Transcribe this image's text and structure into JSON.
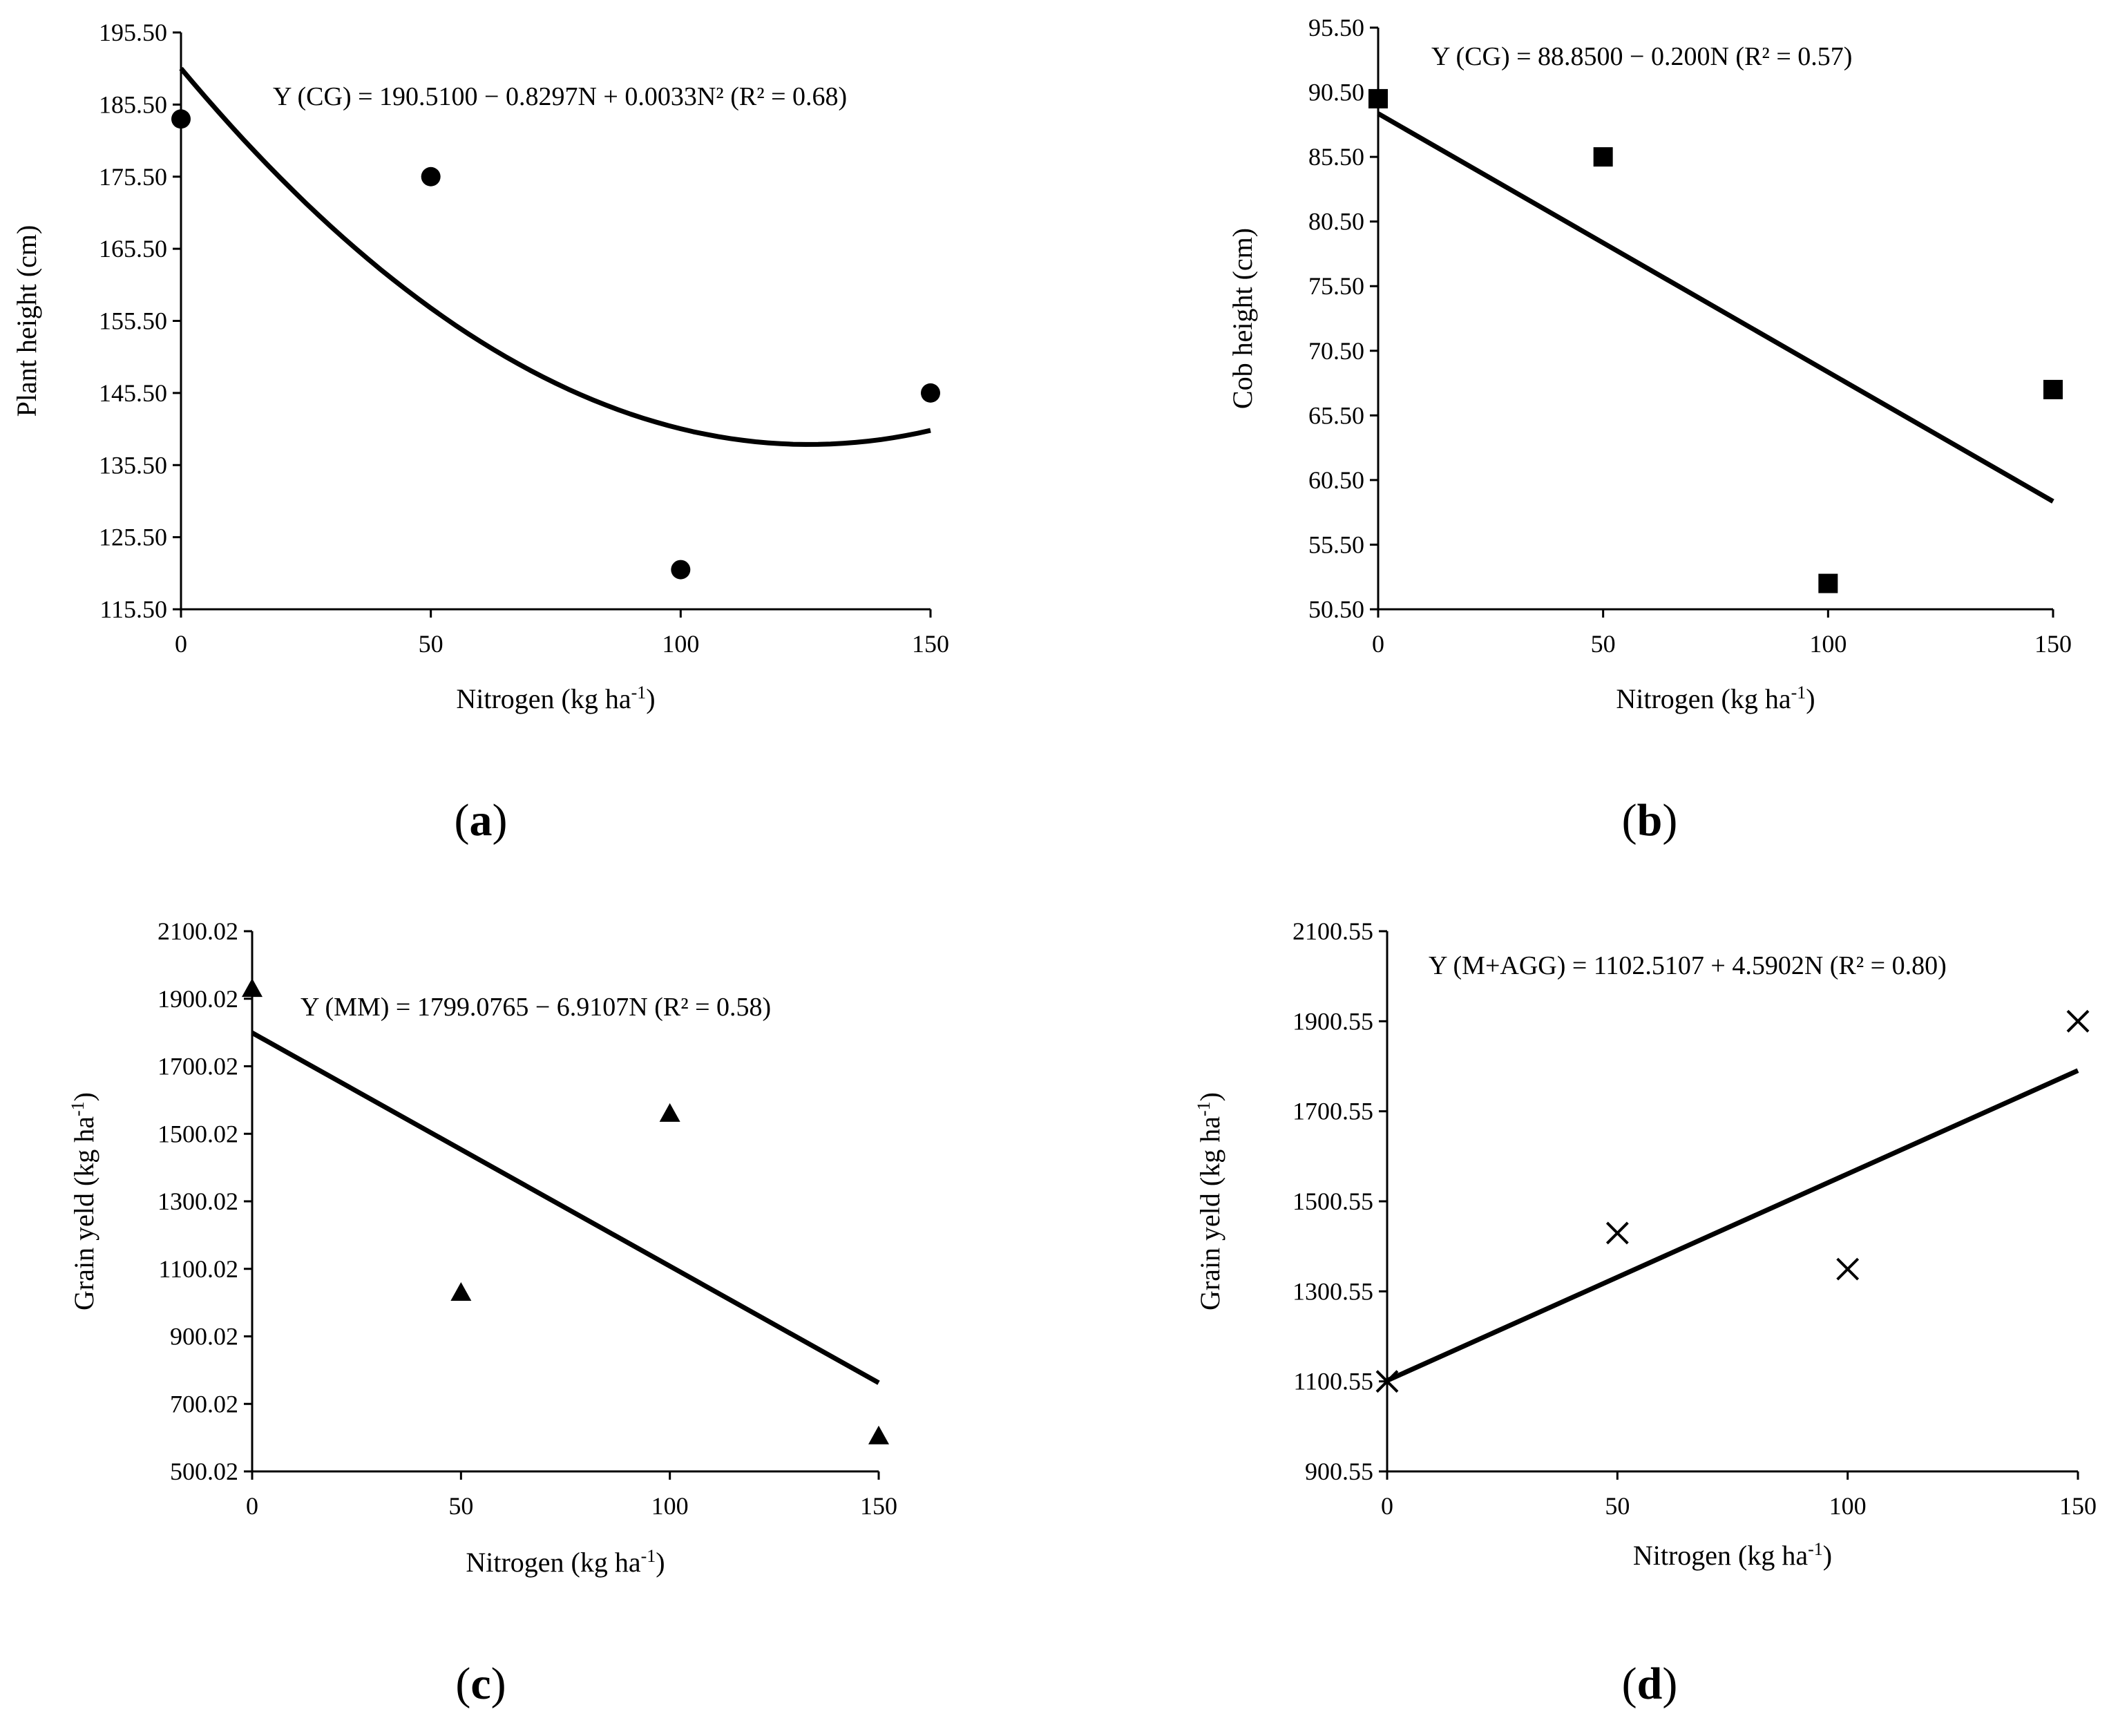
{
  "figure_labels": {
    "a": "a",
    "b": "b",
    "c": "c",
    "d": "d"
  },
  "chart_data": [
    {
      "id": "a",
      "type": "scatter",
      "marker": "circle",
      "title": "",
      "equation": "Y (CG) = 190.5100 − 0.8297N + 0.0033N² (R² = 0.68)",
      "xlabel": "Nitrogen (kg ha-1)",
      "ylabel": "Plant height (cm)",
      "xlim": [
        0,
        150
      ],
      "ylim": [
        115.5,
        195.5
      ],
      "xticks": [
        0,
        50,
        100,
        150
      ],
      "xtick_labels": [
        "0",
        "50",
        "100",
        "150"
      ],
      "yticks": [
        115.5,
        125.5,
        135.5,
        145.5,
        155.5,
        165.5,
        175.5,
        185.5,
        195.5
      ],
      "ytick_labels": [
        "115.50",
        "125.50",
        "135.50",
        "145.50",
        "155.50",
        "165.50",
        "175.50",
        "185.50",
        "195.50"
      ],
      "points": {
        "x": [
          0,
          50,
          100,
          150
        ],
        "y": [
          183.5,
          175.5,
          121.0,
          145.5
        ]
      },
      "fit": {
        "kind": "quadratic",
        "coefficients": [
          190.51,
          -0.8297,
          0.0033
        ],
        "x_range": [
          0,
          150
        ]
      }
    },
    {
      "id": "b",
      "type": "scatter",
      "marker": "square",
      "title": "",
      "equation": "Y (CG) = 88.8500 − 0.200N (R² = 0.57)",
      "xlabel": "Nitrogen (kg ha-1)",
      "ylabel": "Cob height (cm)",
      "xlim": [
        0,
        150
      ],
      "ylim": [
        50.5,
        95.5
      ],
      "xticks": [
        0,
        50,
        100,
        150
      ],
      "xtick_labels": [
        "0",
        "50",
        "100",
        "150"
      ],
      "yticks": [
        50.5,
        55.5,
        60.5,
        65.5,
        70.5,
        75.5,
        80.5,
        85.5,
        90.5,
        95.5
      ],
      "ytick_labels": [
        "50.50",
        "55.50",
        "60.50",
        "65.50",
        "70.50",
        "75.50",
        "80.50",
        "85.50",
        "90.50",
        "95.50"
      ],
      "points": {
        "x": [
          0,
          50,
          100,
          150
        ],
        "y": [
          90.0,
          85.5,
          52.5,
          67.5
        ]
      },
      "fit": {
        "kind": "linear",
        "coefficients": [
          88.85,
          -0.2
        ],
        "x_range": [
          0,
          150
        ]
      }
    },
    {
      "id": "c",
      "type": "scatter",
      "marker": "triangle",
      "title": "",
      "equation": "Y (MM) = 1799.0765 − 6.9107N (R² = 0.58)",
      "xlabel": "Nitrogen (kg ha-1)",
      "ylabel": "Grain yeld (kg ha-1)",
      "xlim": [
        0,
        150
      ],
      "ylim": [
        500.02,
        2100.02
      ],
      "xticks": [
        0,
        50,
        100,
        150
      ],
      "xtick_labels": [
        "0",
        "50",
        "100",
        "150"
      ],
      "yticks": [
        500.02,
        700.02,
        900.02,
        1100.02,
        1300.02,
        1500.02,
        1700.02,
        1900.02,
        2100.02
      ],
      "ytick_labels": [
        "500.02",
        "700.02",
        "900.02",
        "1100.02",
        "1300.02",
        "1500.02",
        "1700.02",
        "1900.02",
        "2100.02"
      ],
      "points": {
        "x": [
          0,
          50,
          100,
          150
        ],
        "y": [
          1930,
          1030,
          1560,
          605
        ]
      },
      "fit": {
        "kind": "linear",
        "coefficients": [
          1799.0765,
          -6.9107
        ],
        "x_range": [
          0,
          150
        ]
      }
    },
    {
      "id": "d",
      "type": "scatter",
      "marker": "cross",
      "title": "",
      "equation": "Y (M+AGG) = 1102.5107 + 4.5902N (R² = 0.80)",
      "xlabel": "Nitrogen (kg ha-1)",
      "ylabel": "Grain yeld (kg ha-1)",
      "xlim": [
        0,
        150
      ],
      "ylim": [
        900.55,
        2100.55
      ],
      "xticks": [
        0,
        50,
        100,
        150
      ],
      "xtick_labels": [
        "0",
        "50",
        "100",
        "150"
      ],
      "yticks": [
        900.55,
        1100.55,
        1300.55,
        1500.55,
        1700.55,
        1900.55,
        2100.55
      ],
      "ytick_labels": [
        "900.55",
        "1100.55",
        "1300.55",
        "1500.55",
        "1700.55",
        "1900.55",
        "2100.55"
      ],
      "points": {
        "x": [
          0,
          50,
          100,
          150
        ],
        "y": [
          1100.55,
          1430,
          1350,
          1900.55
        ]
      },
      "fit": {
        "kind": "linear",
        "coefficients": [
          1102.5107,
          4.5902
        ],
        "x_range": [
          0,
          150
        ]
      }
    }
  ]
}
